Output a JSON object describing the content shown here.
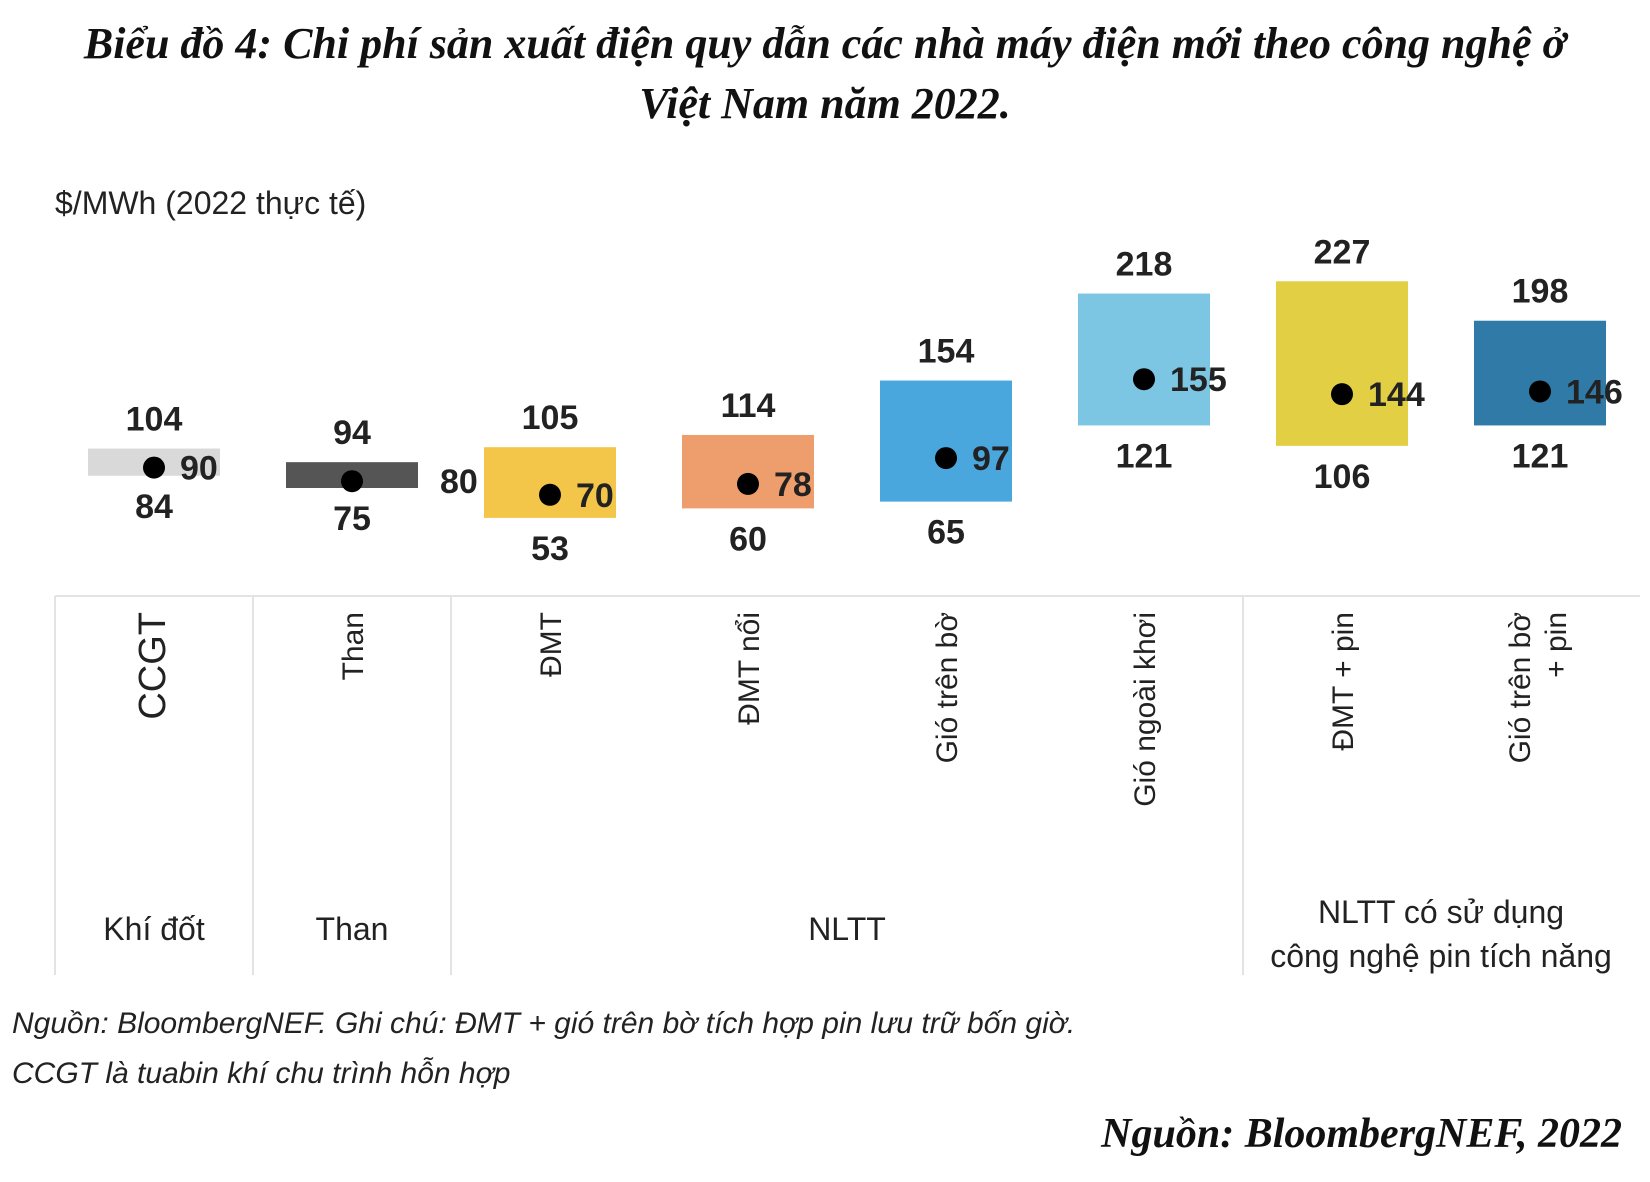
{
  "chart_data": {
    "type": "range",
    "title_line1": "Biểu đồ 4: Chi phí sản xuất điện quy dẫn các nhà máy điện mới theo công nghệ ở",
    "title_line2": "Việt Nam năm 2022.",
    "ylabel": "$/MWh (2022 thực tế)",
    "categories": [
      "CCGT",
      "Than",
      "ĐMT",
      "ĐMT nổi",
      "Gió trên bờ",
      "Gió ngoài khơi",
      "ĐMT + pin",
      "Gió trên bờ + pin"
    ],
    "category_lines": [
      [
        "CCGT"
      ],
      [
        "Than"
      ],
      [
        "ĐMT"
      ],
      [
        "ĐMT nổi"
      ],
      [
        "Gió trên bờ"
      ],
      [
        "Gió ngoài khơi"
      ],
      [
        "ĐMT + pin"
      ],
      [
        "Gió trên bờ",
        "+ pin"
      ]
    ],
    "high": [
      104,
      94,
      105,
      114,
      154,
      218,
      227,
      198
    ],
    "low": [
      84,
      75,
      53,
      60,
      65,
      121,
      106,
      121
    ],
    "midpoint": [
      90,
      80,
      70,
      78,
      97,
      155,
      144,
      146
    ],
    "colors": [
      "#d9d9d9",
      "#555555",
      "#f3c64a",
      "#ee9d6d",
      "#4aa7de",
      "#7cc6e3",
      "#e2cf43",
      "#2f7aa6"
    ],
    "groups": [
      {
        "label": "Khí đốt",
        "span": [
          0,
          0
        ]
      },
      {
        "label": "Than",
        "span": [
          1,
          1
        ]
      },
      {
        "label": "NLTT",
        "span": [
          2,
          5
        ]
      },
      {
        "label": "NLTT có sử dụng công nghệ pin tích năng",
        "lines": [
          "NLTT có sử dụng",
          "công nghệ pin tích năng"
        ],
        "span": [
          6,
          7
        ]
      }
    ]
  },
  "notes": {
    "line1": "Nguồn: BloombergNEF. Ghi chú: ĐMT + gió trên bờ tích hợp pin lưu trữ bốn giờ.",
    "line2": "CCGT là tuabin khí chu trình hỗn hợp"
  },
  "source": "Nguồn: BloombergNEF, 2022"
}
